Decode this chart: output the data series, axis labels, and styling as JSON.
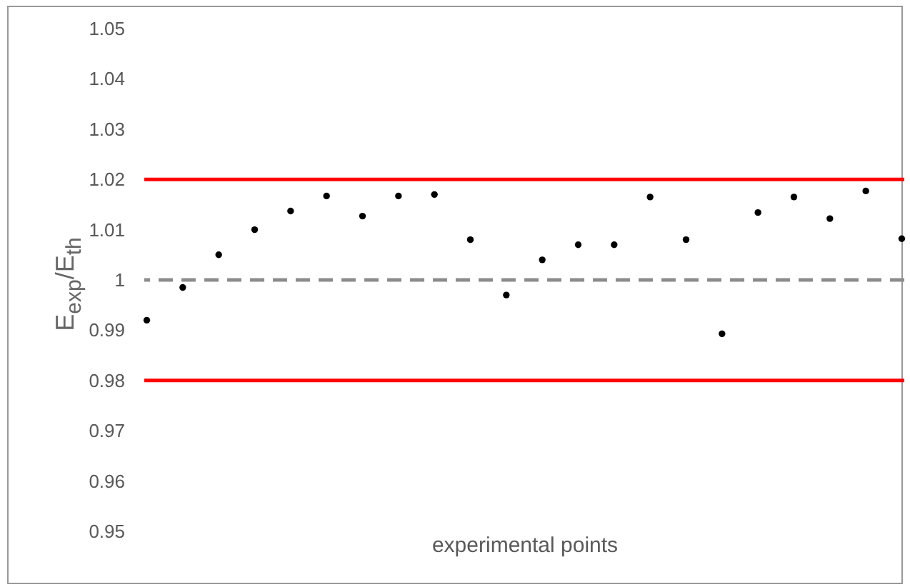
{
  "chart_data": {
    "type": "scatter",
    "xlabel": "experimental points",
    "ylabel": "E$_{exp}$/E$_{th}$",
    "categories": [
      null,
      null,
      null,
      null,
      null,
      null,
      null,
      null,
      null,
      null,
      null,
      null,
      null,
      null,
      null,
      null,
      null,
      null,
      null,
      null,
      null,
      null
    ],
    "series": [
      {
        "color": "#000000",
        "values": [
          0.992,
          0.9985,
          1.005,
          1.01,
          1.0137,
          1.0167,
          1.0127,
          1.0167,
          1.017,
          1.008,
          0.997,
          1.004,
          1.007,
          1.007,
          1.0165,
          1.008,
          0.9893,
          1.0134,
          1.0165,
          1.0122,
          1.0177,
          1.0082
        ]
      }
    ],
    "ylim": [
      0.95,
      1.05
    ],
    "yticks": [
      {
        "value": 0.95,
        "label": "0.95"
      },
      {
        "value": 0.96,
        "label": "0.96"
      },
      {
        "value": 0.97,
        "label": "0.97"
      },
      {
        "value": 0.98,
        "label": "0.98"
      },
      {
        "value": 0.99,
        "label": "0.99"
      },
      1,
      {
        "value": 1.01,
        "label": "1.01"
      },
      {
        "value": 1.02,
        "label": "1.02"
      },
      {
        "value": 1.03,
        "label": "1.03"
      },
      {
        "value": 1.04,
        "label": "1.04"
      },
      {
        "value": 1.05,
        "label": "1.05"
      }
    ],
    "ref_lines": [
      {
        "axis": "y",
        "value": 1.02,
        "color": "#ff0000",
        "line_style": "solid"
      },
      {
        "axis": "y",
        "value": 0.98,
        "color": "#ff0000",
        "line_style": "solid"
      },
      {
        "axis": "y",
        "value": 1,
        "color": "#8c8c8c",
        "line_style": "dashed"
      }
    ],
    "marker": "circle",
    "grid": false,
    "tick_labels": "y"
  }
}
